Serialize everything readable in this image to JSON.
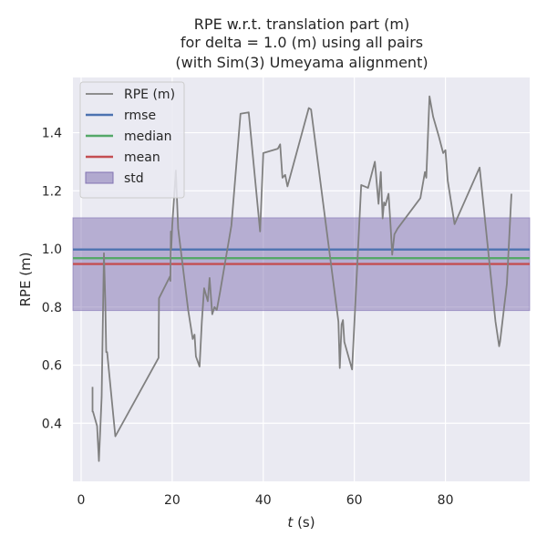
{
  "chart_data": {
    "type": "line",
    "title_lines": [
      "RPE w.r.t. translation part (m)",
      "for delta = 1.0 (m) using all pairs",
      "(with Sim(3) Umeyama alignment)"
    ],
    "xlabel_var": "t",
    "xlabel_unit": " (s)",
    "ylabel": "RPE (m)",
    "xlim": [
      -1.8,
      98.5
    ],
    "ylim": [
      0.2,
      1.59
    ],
    "xticks": [
      0,
      20,
      40,
      60,
      80
    ],
    "yticks": [
      0.4,
      0.6,
      0.8,
      1.0,
      1.2,
      1.4
    ],
    "ytick_labels": [
      "0.4",
      "0.6",
      "0.8",
      "1.0",
      "1.2",
      "1.4"
    ],
    "grid": true,
    "legend_position": "top-left",
    "legend": [
      {
        "label": "RPE (m)",
        "kind": "line",
        "color": "#808080"
      },
      {
        "label": "rmse",
        "kind": "line",
        "color": "#4c72b0"
      },
      {
        "label": "median",
        "kind": "line",
        "color": "#55a868"
      },
      {
        "label": "mean",
        "kind": "line",
        "color": "#c44e52"
      },
      {
        "label": "std",
        "kind": "patch",
        "color": "#8172b2"
      }
    ],
    "stats": {
      "rmse": 0.998,
      "median": 0.968,
      "mean": 0.948,
      "std_band": [
        0.788,
        1.107
      ]
    },
    "series": [
      {
        "color": "#808080",
        "x": [
          2.5,
          2.5,
          2.6,
          3.5,
          3.9,
          4.5,
          5.0,
          5.3,
          5.5,
          5.7,
          7.5,
          17.0,
          17.1,
          19.5,
          19.6,
          19.7,
          19.8,
          20.0,
          20.8,
          21.3,
          23.5,
          24.5,
          24.9,
          25.2,
          26.0,
          26.5,
          27.0,
          27.8,
          28.2,
          28.8,
          29.3,
          29.8,
          30.5,
          33.0,
          35.0,
          36.8,
          39.3,
          40.0,
          43.2,
          43.7,
          44.2,
          44.8,
          45.3,
          50.0,
          50.5,
          56.5,
          56.8,
          57.2,
          57.5,
          57.8,
          59.5,
          61.5,
          63.0,
          64.5,
          65.3,
          65.8,
          66.2,
          66.5,
          66.8,
          67.5,
          68.0,
          68.3,
          68.8,
          69.5,
          74.5,
          75.5,
          75.8,
          76.5,
          77.3,
          78.5,
          79.5,
          80.0,
          80.5,
          82.0,
          87.5,
          91.0,
          91.8,
          92.0,
          93.5,
          94.5
        ],
        "y": [
          0.525,
          0.44,
          0.44,
          0.39,
          0.27,
          0.49,
          0.985,
          0.82,
          0.645,
          0.645,
          0.355,
          0.625,
          0.83,
          0.905,
          0.89,
          1.06,
          1.0,
          1.08,
          1.27,
          1.07,
          0.79,
          0.69,
          0.705,
          0.63,
          0.595,
          0.75,
          0.865,
          0.82,
          0.9,
          0.775,
          0.8,
          0.79,
          0.85,
          1.08,
          1.465,
          1.47,
          1.06,
          1.33,
          1.345,
          1.36,
          1.245,
          1.255,
          1.215,
          1.485,
          1.48,
          0.75,
          0.59,
          0.74,
          0.755,
          0.68,
          0.585,
          1.22,
          1.21,
          1.3,
          1.155,
          1.265,
          1.105,
          1.16,
          1.15,
          1.19,
          1.065,
          0.98,
          1.05,
          1.07,
          1.175,
          1.265,
          1.245,
          1.525,
          1.455,
          1.39,
          1.33,
          1.34,
          1.235,
          1.085,
          1.28,
          0.75,
          0.665,
          0.68,
          0.88,
          1.19
        ]
      }
    ]
  }
}
